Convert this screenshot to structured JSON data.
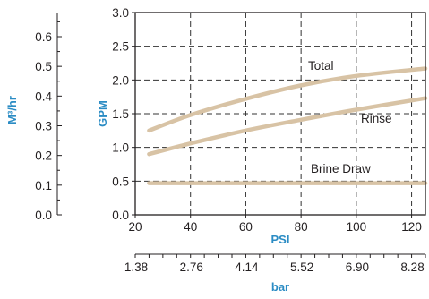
{
  "colors": {
    "curve": "#d8c3a5",
    "axis_title": "#2b8cc4",
    "ink": "#231f20",
    "grid": "#333333"
  },
  "chart_data": {
    "type": "line",
    "xlabel": "PSI",
    "ylabel": "GPM",
    "xlim": [
      20,
      125
    ],
    "ylim": [
      0,
      3.0
    ],
    "x_ticks": [
      20,
      40,
      60,
      80,
      100,
      120
    ],
    "y_ticks": [
      0.0,
      0.5,
      1.0,
      1.5,
      2.0,
      2.5,
      3.0
    ],
    "y_tick_labels": [
      "0.0",
      "0.5",
      "1.0",
      "1.5",
      "2.0",
      "2.5",
      "3.0"
    ],
    "grid": true,
    "series": [
      {
        "name": "Total",
        "x": [
          25,
          40,
          60,
          80,
          100,
          125
        ],
        "y": [
          1.25,
          1.48,
          1.72,
          1.92,
          2.06,
          2.17
        ]
      },
      {
        "name": "Rinse",
        "x": [
          25,
          40,
          60,
          80,
          100,
          125
        ],
        "y": [
          0.9,
          1.06,
          1.25,
          1.41,
          1.56,
          1.73
        ]
      },
      {
        "name": "Brine Draw",
        "x": [
          25,
          125
        ],
        "y": [
          0.47,
          0.47
        ]
      }
    ],
    "secondary_y": {
      "label": "M³/hr",
      "ticks": [
        0.0,
        0.1,
        0.2,
        0.3,
        0.4,
        0.5,
        0.6
      ],
      "tick_labels": [
        "0.0",
        "0.1",
        "0.2",
        "0.3",
        "0.4",
        "0.5",
        "0.6"
      ],
      "gpm_per_unit": 4.403
    },
    "secondary_x": {
      "label": "bar",
      "tick_labels": [
        "1.38",
        "2.76",
        "4.14",
        "5.52",
        "6.90",
        "8.28"
      ],
      "psi_positions": [
        20,
        40,
        60,
        80,
        100,
        120
      ]
    }
  }
}
